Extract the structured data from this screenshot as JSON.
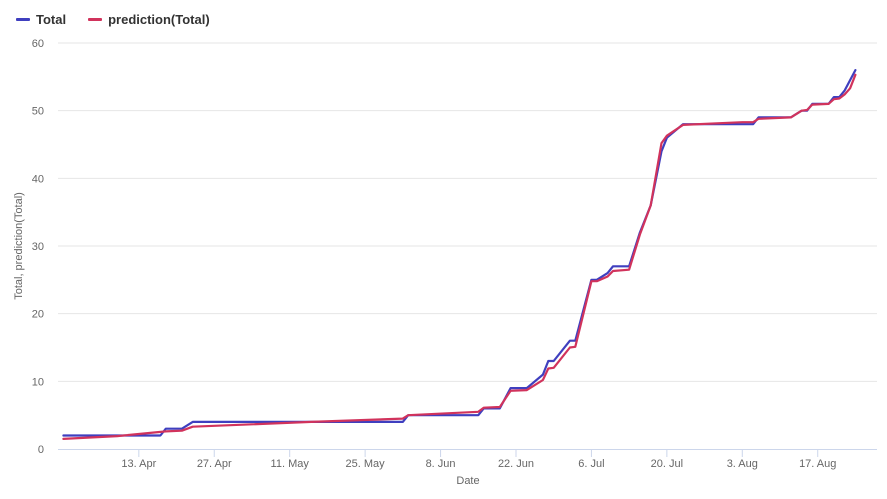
{
  "chart_data": {
    "type": "line",
    "xlabel": "Date",
    "ylabel": "Total, prediction(Total)",
    "ylim": [
      0,
      60
    ],
    "yticks": [
      0,
      10,
      20,
      30,
      40,
      50,
      60
    ],
    "xlim": [
      "2020-03-29",
      "2020-08-28"
    ],
    "xticks": [
      {
        "date": "2020-04-13",
        "label": "13. Apr"
      },
      {
        "date": "2020-04-27",
        "label": "27. Apr"
      },
      {
        "date": "2020-05-11",
        "label": "11. May"
      },
      {
        "date": "2020-05-25",
        "label": "25. May"
      },
      {
        "date": "2020-06-08",
        "label": "8. Jun"
      },
      {
        "date": "2020-06-22",
        "label": "22. Jun"
      },
      {
        "date": "2020-07-06",
        "label": "6. Jul"
      },
      {
        "date": "2020-07-20",
        "label": "20. Jul"
      },
      {
        "date": "2020-08-03",
        "label": "3. Aug"
      },
      {
        "date": "2020-08-17",
        "label": "17. Aug"
      }
    ],
    "grid": true,
    "legend_position": "top-left",
    "series": [
      {
        "name": "Total",
        "color": "#3f3fbf",
        "points": [
          [
            "2020-03-30",
            2
          ],
          [
            "2020-04-07",
            2
          ],
          [
            "2020-04-08",
            2
          ],
          [
            "2020-04-09",
            2
          ],
          [
            "2020-04-17",
            2
          ],
          [
            "2020-04-18",
            3
          ],
          [
            "2020-04-21",
            3
          ],
          [
            "2020-04-23",
            4
          ],
          [
            "2020-05-15",
            4
          ],
          [
            "2020-06-01",
            4
          ],
          [
            "2020-06-02",
            5
          ],
          [
            "2020-06-15",
            5
          ],
          [
            "2020-06-16",
            6
          ],
          [
            "2020-06-19",
            6
          ],
          [
            "2020-06-21",
            9
          ],
          [
            "2020-06-24",
            9
          ],
          [
            "2020-06-27",
            11
          ],
          [
            "2020-06-28",
            13
          ],
          [
            "2020-06-29",
            13
          ],
          [
            "2020-07-02",
            16
          ],
          [
            "2020-07-03",
            16
          ],
          [
            "2020-07-06",
            25
          ],
          [
            "2020-07-07",
            25
          ],
          [
            "2020-07-09",
            26
          ],
          [
            "2020-07-10",
            27
          ],
          [
            "2020-07-13",
            27
          ],
          [
            "2020-07-15",
            32
          ],
          [
            "2020-07-17",
            36
          ],
          [
            "2020-07-19",
            44
          ],
          [
            "2020-07-20",
            46
          ],
          [
            "2020-07-23",
            48
          ],
          [
            "2020-08-03",
            48
          ],
          [
            "2020-08-05",
            48
          ],
          [
            "2020-08-06",
            49
          ],
          [
            "2020-08-12",
            49
          ],
          [
            "2020-08-14",
            50
          ],
          [
            "2020-08-15",
            50
          ],
          [
            "2020-08-16",
            51
          ],
          [
            "2020-08-19",
            51
          ],
          [
            "2020-08-20",
            52
          ],
          [
            "2020-08-21",
            52
          ],
          [
            "2020-08-22",
            53
          ],
          [
            "2020-08-24",
            56
          ]
        ]
      },
      {
        "name": "prediction(Total)",
        "color": "#d1335c",
        "points": [
          [
            "2020-03-30",
            1.5
          ],
          [
            "2020-04-09",
            1.9
          ],
          [
            "2020-04-18",
            2.6
          ],
          [
            "2020-04-21",
            2.7
          ],
          [
            "2020-04-23",
            3.3
          ],
          [
            "2020-05-15",
            4.0
          ],
          [
            "2020-06-01",
            4.5
          ],
          [
            "2020-06-02",
            5.0
          ],
          [
            "2020-06-15",
            5.5
          ],
          [
            "2020-06-16",
            6.1
          ],
          [
            "2020-06-19",
            6.2
          ],
          [
            "2020-06-21",
            8.6
          ],
          [
            "2020-06-24",
            8.7
          ],
          [
            "2020-06-27",
            10.2
          ],
          [
            "2020-06-28",
            11.9
          ],
          [
            "2020-06-29",
            12.0
          ],
          [
            "2020-07-02",
            15.0
          ],
          [
            "2020-07-03",
            15.1
          ],
          [
            "2020-07-06",
            24.8
          ],
          [
            "2020-07-07",
            24.8
          ],
          [
            "2020-07-09",
            25.5
          ],
          [
            "2020-07-10",
            26.3
          ],
          [
            "2020-07-13",
            26.5
          ],
          [
            "2020-07-15",
            31.7
          ],
          [
            "2020-07-17",
            36.0
          ],
          [
            "2020-07-19",
            45.2
          ],
          [
            "2020-07-20",
            46.3
          ],
          [
            "2020-07-23",
            47.9
          ],
          [
            "2020-08-03",
            48.3
          ],
          [
            "2020-08-05",
            48.3
          ],
          [
            "2020-08-06",
            48.8
          ],
          [
            "2020-08-12",
            49.0
          ],
          [
            "2020-08-14",
            50.0
          ],
          [
            "2020-08-15",
            50.1
          ],
          [
            "2020-08-16",
            50.9
          ],
          [
            "2020-08-19",
            51.0
          ],
          [
            "2020-08-20",
            51.7
          ],
          [
            "2020-08-21",
            51.8
          ],
          [
            "2020-08-22",
            52.4
          ],
          [
            "2020-08-23",
            53.3
          ],
          [
            "2020-08-24",
            55.3
          ]
        ]
      }
    ]
  }
}
